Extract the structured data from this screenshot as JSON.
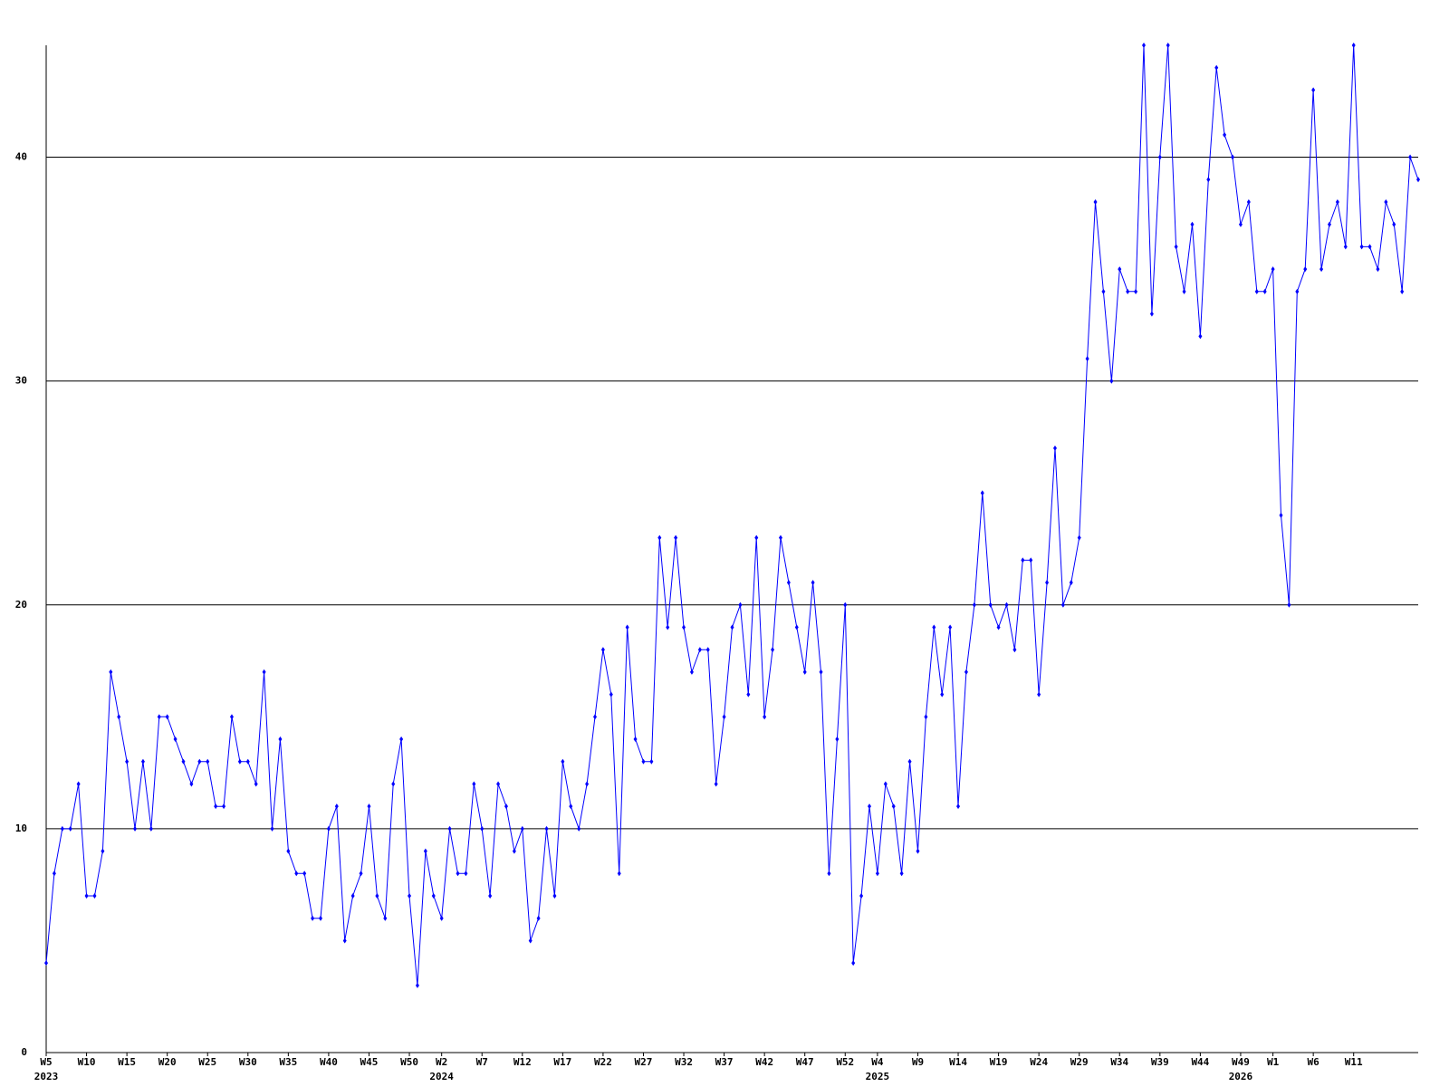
{
  "chart_data": {
    "type": "line",
    "color": "#0000ff",
    "grid": true,
    "ylim": [
      0,
      45
    ],
    "yticks": [
      0,
      10,
      20,
      30,
      40
    ],
    "categories": [
      "W5",
      null,
      null,
      null,
      null,
      "W10",
      null,
      null,
      null,
      null,
      "W15",
      null,
      null,
      null,
      null,
      "W20",
      null,
      null,
      null,
      null,
      "W25",
      null,
      null,
      null,
      null,
      "W30",
      null,
      null,
      null,
      null,
      "W35",
      null,
      null,
      null,
      null,
      "W40",
      null,
      null,
      null,
      null,
      "W45",
      null,
      null,
      null,
      null,
      "W50",
      null,
      null,
      null,
      "W2",
      null,
      null,
      null,
      null,
      "W7",
      null,
      null,
      null,
      null,
      "W12",
      null,
      null,
      null,
      null,
      "W17",
      null,
      null,
      null,
      null,
      "W22",
      null,
      null,
      null,
      null,
      "W27",
      null,
      null,
      null,
      null,
      "W32",
      null,
      null,
      null,
      null,
      "W37",
      null,
      null,
      null,
      null,
      "W42",
      null,
      null,
      null,
      null,
      "W47",
      null,
      null,
      null,
      null,
      "W52",
      null,
      null,
      null,
      "W4",
      null,
      null,
      null,
      null,
      "W9",
      null,
      null,
      null,
      null,
      "W14",
      null,
      null,
      null,
      null,
      "W19",
      null,
      null,
      null,
      null,
      "W24",
      null,
      null,
      null,
      null,
      "W29",
      null,
      null,
      null,
      null,
      "W34",
      null,
      null,
      null,
      null,
      "W39",
      null,
      null,
      null,
      null,
      "W44",
      null,
      null,
      null,
      null,
      "W49",
      null,
      null,
      null,
      "W1",
      null,
      null,
      null,
      null,
      "W6",
      null,
      null,
      null,
      null,
      "W11",
      null,
      null,
      null,
      null,
      null,
      null,
      null,
      null
    ],
    "years": [
      "2023",
      null,
      null,
      null,
      null,
      null,
      null,
      null,
      null,
      null,
      null,
      null,
      null,
      null,
      null,
      null,
      null,
      null,
      null,
      null,
      null,
      null,
      null,
      null,
      null,
      null,
      null,
      null,
      null,
      null,
      null,
      null,
      null,
      null,
      null,
      null,
      null,
      null,
      null,
      null,
      null,
      null,
      null,
      null,
      null,
      null,
      null,
      null,
      null,
      "2024",
      null,
      null,
      null,
      null,
      null,
      null,
      null,
      null,
      null,
      null,
      null,
      null,
      null,
      null,
      null,
      null,
      null,
      null,
      null,
      null,
      null,
      null,
      null,
      null,
      null,
      null,
      null,
      null,
      null,
      null,
      null,
      null,
      null,
      null,
      null,
      null,
      null,
      null,
      null,
      null,
      null,
      null,
      null,
      null,
      null,
      null,
      null,
      null,
      null,
      null,
      null,
      null,
      null,
      "2025",
      null,
      null,
      null,
      null,
      null,
      null,
      null,
      null,
      null,
      null,
      null,
      null,
      null,
      null,
      null,
      null,
      null,
      null,
      null,
      null,
      null,
      null,
      null,
      null,
      null,
      null,
      null,
      null,
      null,
      null,
      null,
      null,
      null,
      null,
      null,
      null,
      null,
      null,
      null,
      null,
      null,
      null,
      null,
      null,
      "2026",
      null,
      null,
      null,
      null,
      null,
      null,
      null,
      null,
      null,
      null,
      null,
      null,
      null,
      null,
      null,
      null,
      null,
      null
    ],
    "values": [
      4,
      8,
      10,
      10,
      12,
      7,
      7,
      9,
      17,
      15,
      13,
      10,
      13,
      10,
      15,
      15,
      14,
      13,
      12,
      13,
      13,
      11,
      11,
      15,
      13,
      13,
      12,
      17,
      10,
      14,
      9,
      8,
      8,
      6,
      6,
      10,
      11,
      5,
      7,
      8,
      11,
      7,
      6,
      12,
      14,
      7,
      3,
      9,
      7,
      6,
      10,
      8,
      8,
      12,
      10,
      7,
      12,
      11,
      9,
      10,
      5,
      6,
      10,
      7,
      13,
      11,
      10,
      12,
      15,
      18,
      16,
      8,
      19,
      14,
      13,
      13,
      23,
      19,
      23,
      19,
      17,
      18,
      18,
      12,
      15,
      19,
      20,
      16,
      23,
      15,
      18,
      23,
      21,
      19,
      17,
      21,
      17,
      8,
      14,
      20,
      4,
      7,
      11,
      8,
      12,
      11,
      8,
      13,
      9,
      15,
      19,
      16,
      19,
      11,
      17,
      20,
      25,
      20,
      19,
      20,
      18,
      22,
      22,
      16,
      21,
      27,
      20,
      21,
      23,
      31,
      38,
      34,
      30,
      35,
      34,
      34,
      45,
      33,
      40,
      45,
      36,
      34,
      37,
      32,
      39,
      44,
      41,
      40,
      37,
      38,
      34,
      34,
      35,
      24,
      20,
      34,
      35,
      43,
      35,
      37,
      38,
      36,
      45,
      36,
      36,
      35,
      38,
      37,
      34,
      40,
      39
    ]
  }
}
